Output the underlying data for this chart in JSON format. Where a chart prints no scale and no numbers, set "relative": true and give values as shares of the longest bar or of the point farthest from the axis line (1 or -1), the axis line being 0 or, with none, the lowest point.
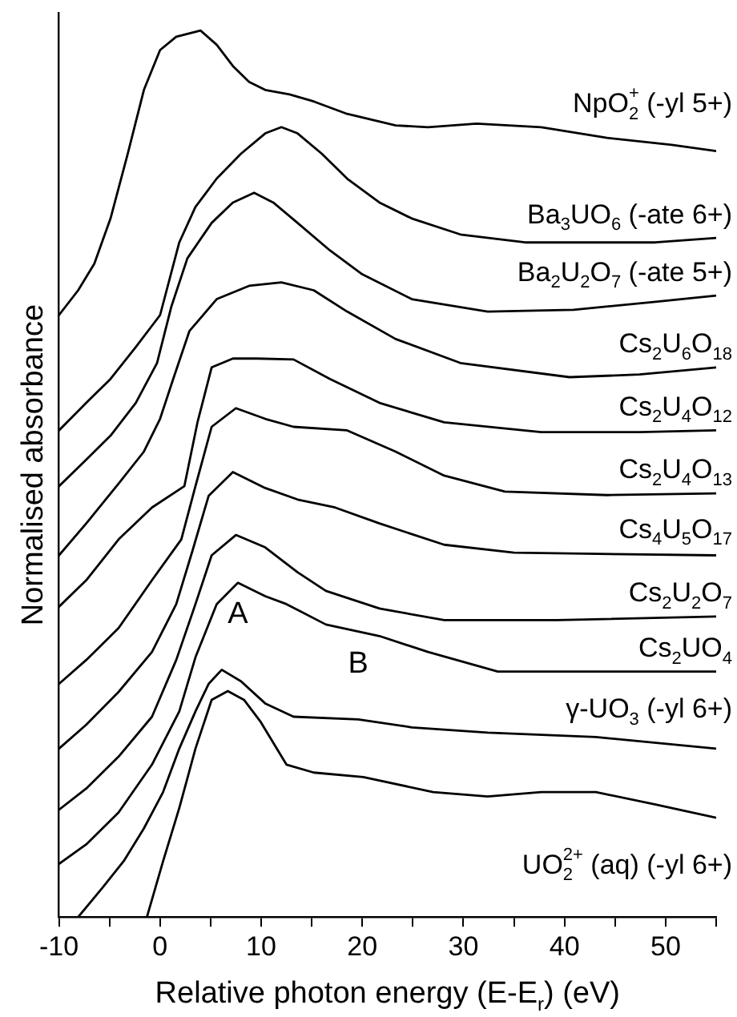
{
  "chart_data": {
    "type": "line",
    "relative": true,
    "xlabel": "Relative photon energy (E-E$_{r}$) (eV)",
    "ylabel": "Normalised absorbance",
    "xlim": [
      -10,
      55
    ],
    "xticks": [
      -10,
      {
        "value": -5,
        "label": null
      },
      0,
      {
        "value": 5,
        "label": null
      },
      10,
      {
        "value": 15,
        "label": null
      },
      20,
      {
        "value": 25,
        "label": null
      },
      30,
      {
        "value": 35,
        "label": null
      },
      40,
      {
        "value": 45,
        "label": null
      },
      50,
      {
        "value": 55,
        "label": null
      }
    ],
    "legend": false,
    "grid": false,
    "annotations": [
      {
        "text": "A",
        "x": 7.7,
        "y": 0.377
      },
      {
        "text": "B",
        "x": 19.6,
        "y": 0.321
      }
    ],
    "series": [
      {
        "name": "NpO$_{2}$$^{+}$ (-yl 5+)",
        "color": "#000000",
        "x": [
          -10,
          -8.1,
          -6.5,
          -4.9,
          -3.2,
          -1.6,
          0.0,
          1.6,
          4.0,
          5.6,
          7.2,
          8.8,
          10.4,
          12.8,
          15.2,
          18.5,
          23.3,
          26.5,
          31.3,
          37.7,
          44.2,
          50.6,
          55
        ],
        "values": [
          0.679,
          0.707,
          0.737,
          0.788,
          0.861,
          0.933,
          0.978,
          0.993,
          1.0,
          0.984,
          0.96,
          0.942,
          0.933,
          0.928,
          0.92,
          0.906,
          0.893,
          0.891,
          0.895,
          0.891,
          0.879,
          0.871,
          0.864
        ]
      },
      {
        "name": "Ba$_{3}$UO$_{6}$ (-ate 6+)",
        "color": "#000000",
        "x": [
          -10,
          -7.3,
          -4.9,
          -2.4,
          0.0,
          1.9,
          3.5,
          5.6,
          8.0,
          10.4,
          12.0,
          13.6,
          16.0,
          18.5,
          21.7,
          24.9,
          29.7,
          36.1,
          43.1,
          49.0,
          55
        ],
        "values": [
          0.549,
          0.58,
          0.607,
          0.643,
          0.679,
          0.761,
          0.801,
          0.833,
          0.861,
          0.884,
          0.891,
          0.884,
          0.861,
          0.833,
          0.806,
          0.788,
          0.77,
          0.761,
          0.761,
          0.761,
          0.766
        ]
      },
      {
        "name": "Ba$_{2}$U$_{2}$O$_{7}$ (-ate 5+)",
        "color": "#000000",
        "x": [
          -10,
          -7.3,
          -4.9,
          -2.4,
          -0.3,
          1.1,
          2.7,
          5.1,
          7.2,
          9.3,
          11.2,
          13.6,
          16.8,
          20.0,
          24.9,
          32.4,
          40.9,
          49.0,
          55
        ],
        "values": [
          0.486,
          0.516,
          0.543,
          0.58,
          0.625,
          0.688,
          0.743,
          0.783,
          0.806,
          0.817,
          0.806,
          0.783,
          0.752,
          0.725,
          0.697,
          0.683,
          0.685,
          0.694,
          0.701
        ]
      },
      {
        "name": "Cs$_{2}$U$_{6}$O$_{18}$",
        "color": "#000000",
        "x": [
          -10,
          -7.3,
          -4.1,
          -1.6,
          0.0,
          1.3,
          2.9,
          5.6,
          8.8,
          12.0,
          15.2,
          18.5,
          23.3,
          29.7,
          40.5,
          47.4,
          55
        ],
        "values": [
          0.408,
          0.444,
          0.489,
          0.525,
          0.562,
          0.607,
          0.661,
          0.697,
          0.712,
          0.716,
          0.707,
          0.683,
          0.652,
          0.625,
          0.609,
          0.612,
          0.62
        ]
      },
      {
        "name": "Cs$_{2}$U$_{4}$O$_{12}$",
        "color": "#000000",
        "x": [
          -10,
          -7.3,
          -4.1,
          -0.8,
          2.4,
          3.7,
          5.1,
          7.2,
          9.6,
          13.2,
          16.8,
          21.7,
          28.1,
          37.7,
          47.4,
          55
        ],
        "values": [
          0.35,
          0.38,
          0.426,
          0.462,
          0.486,
          0.558,
          0.62,
          0.63,
          0.63,
          0.629,
          0.607,
          0.58,
          0.558,
          0.547,
          0.547,
          0.549
        ]
      },
      {
        "name": "Cs$_{2}$U$_{4}$O$_{13}$",
        "color": "#000000",
        "x": [
          -10,
          -7.3,
          -4.1,
          -0.8,
          2.1,
          3.5,
          5.1,
          7.5,
          10.4,
          13.2,
          18.5,
          23.3,
          28.1,
          34.1,
          44.2,
          55
        ],
        "values": [
          0.263,
          0.29,
          0.326,
          0.38,
          0.426,
          0.486,
          0.553,
          0.574,
          0.562,
          0.553,
          0.549,
          0.525,
          0.498,
          0.48,
          0.476,
          0.478
        ]
      },
      {
        "name": "Cs$_{4}$U$_{5}$O$_{17}$",
        "color": "#000000",
        "x": [
          -10,
          -7.3,
          -4.1,
          -0.8,
          1.6,
          3.2,
          4.8,
          7.2,
          10.4,
          13.6,
          17.3,
          21.7,
          28.1,
          35.0,
          55
        ],
        "values": [
          0.19,
          0.217,
          0.254,
          0.299,
          0.353,
          0.413,
          0.475,
          0.502,
          0.484,
          0.471,
          0.462,
          0.444,
          0.42,
          0.411,
          0.408
        ]
      },
      {
        "name": "Cs$_{2}$U$_{2}$O$_{7}$",
        "color": "#000000",
        "x": [
          -10,
          -7.3,
          -4.1,
          -0.8,
          1.6,
          3.5,
          5.1,
          7.5,
          10.4,
          13.6,
          16.4,
          21.7,
          28.1,
          39.3,
          55
        ],
        "values": [
          0.121,
          0.145,
          0.181,
          0.226,
          0.29,
          0.353,
          0.408,
          0.431,
          0.417,
          0.389,
          0.368,
          0.348,
          0.335,
          0.335,
          0.339
        ]
      },
      {
        "name": "Cs$_{2}$UO$_{4}$",
        "color": "#000000",
        "x": [
          -10,
          -7.3,
          -4.1,
          -0.8,
          1.9,
          3.5,
          5.6,
          7.7,
          10.4,
          12.5,
          16.4,
          21.7,
          26.5,
          33.4,
          44.2,
          55
        ],
        "values": [
          0.06,
          0.082,
          0.118,
          0.172,
          0.232,
          0.293,
          0.353,
          0.377,
          0.362,
          0.353,
          0.33,
          0.317,
          0.299,
          0.277,
          0.277,
          0.277
        ]
      },
      {
        "name": "γ-UO$_{3}$ (-yl 6+)",
        "color": "#000000",
        "x": [
          -8.1,
          -5.7,
          -3.6,
          -1.6,
          0.3,
          1.9,
          3.5,
          4.8,
          6.1,
          8.0,
          10.4,
          13.2,
          19.6,
          24.9,
          32.4,
          43.1,
          55
        ],
        "values": [
          0,
          0.033,
          0.063,
          0.1,
          0.141,
          0.19,
          0.232,
          0.263,
          0.279,
          0.266,
          0.241,
          0.226,
          0.223,
          0.214,
          0.208,
          0.203,
          0.19
        ]
      },
      {
        "name": "UO$_{2}$$^{2+}$ (aq) (-yl 6+)",
        "color": "#000000",
        "x": [
          -1.3,
          0.3,
          1.9,
          3.5,
          5.1,
          6.7,
          8.3,
          9.9,
          12.5,
          15.2,
          20.1,
          27.0,
          32.4,
          37.7,
          43.1,
          49.0,
          55
        ],
        "values": [
          0,
          0.063,
          0.123,
          0.19,
          0.245,
          0.255,
          0.245,
          0.221,
          0.172,
          0.163,
          0.158,
          0.141,
          0.136,
          0.141,
          0.141,
          0.127,
          0.112
        ]
      }
    ]
  }
}
